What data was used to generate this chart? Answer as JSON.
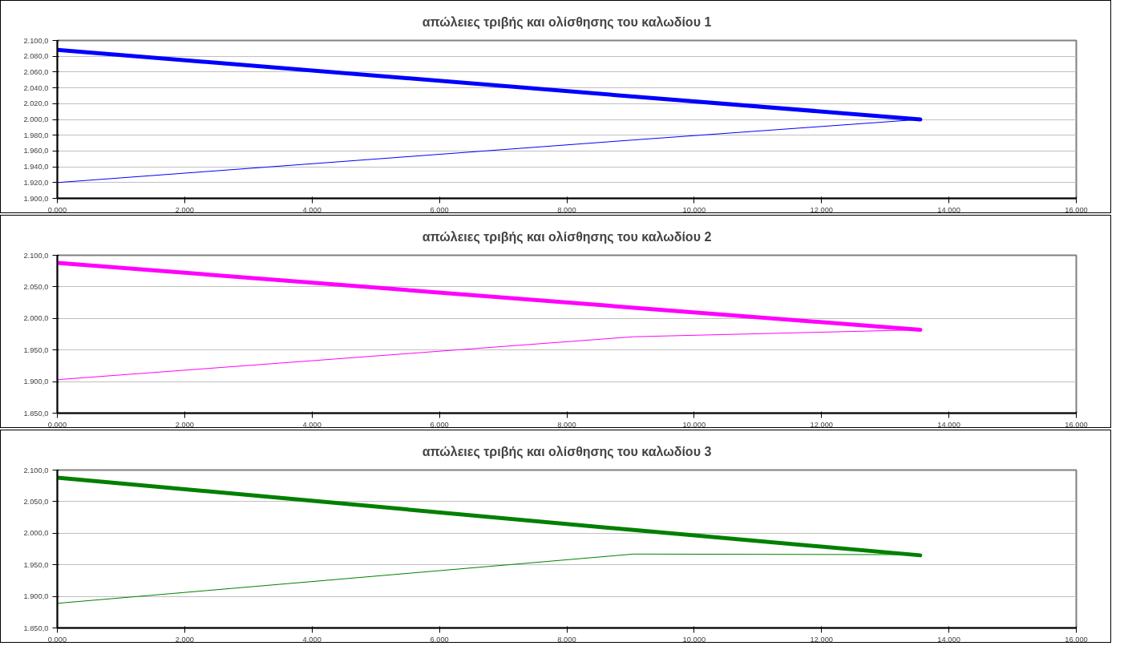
{
  "chart_data": [
    {
      "type": "line",
      "title": "απώλειες τριβής και ολίσθησης του καλωδίου 1",
      "x": [
        0,
        9.05,
        13.55
      ],
      "xlim": [
        0,
        16
      ],
      "xticks": [
        {
          "value": 0,
          "label": "0,000"
        },
        {
          "value": 2,
          "label": "2,000"
        },
        {
          "value": 4,
          "label": "4,000"
        },
        {
          "value": 6,
          "label": "6,000"
        },
        {
          "value": 8,
          "label": "8,000"
        },
        {
          "value": 10,
          "label": "10,000"
        },
        {
          "value": 12,
          "label": "12,000"
        },
        {
          "value": 14,
          "label": "14,000"
        },
        {
          "value": 16,
          "label": "16,000"
        }
      ],
      "ylim": [
        1900,
        2100
      ],
      "yticks": [
        {
          "value": 1900,
          "label": "1.900,0"
        },
        {
          "value": 1920,
          "label": "1.920,0"
        },
        {
          "value": 1940,
          "label": "1.940,0"
        },
        {
          "value": 1960,
          "label": "1.960,0"
        },
        {
          "value": 1980,
          "label": "1.980,0"
        },
        {
          "value": 2000,
          "label": "2.000,0"
        },
        {
          "value": 2020,
          "label": "2.020,0"
        },
        {
          "value": 2040,
          "label": "2.040,0"
        },
        {
          "value": 2060,
          "label": "2.060,0"
        },
        {
          "value": 2080,
          "label": "2.080,0"
        },
        {
          "value": 2100,
          "label": "2.100,0"
        }
      ],
      "grid": "y",
      "series": [
        {
          "color": "#0000ff",
          "values": [
            2088,
            2029,
            2000
          ]
        },
        {
          "color": "#0000ff",
          "values": [
            1920,
            1974,
            2000
          ]
        }
      ]
    },
    {
      "type": "line",
      "title": "απώλειες τριβής και ολίσθησης του καλωδίου 2",
      "x": [
        0,
        9.05,
        13.55
      ],
      "xlim": [
        0,
        16
      ],
      "xticks": [
        {
          "value": 0,
          "label": "0,000"
        },
        {
          "value": 2,
          "label": "2,000"
        },
        {
          "value": 4,
          "label": "4,000"
        },
        {
          "value": 6,
          "label": "6,000"
        },
        {
          "value": 8,
          "label": "8,000"
        },
        {
          "value": 10,
          "label": "10,000"
        },
        {
          "value": 12,
          "label": "12,000"
        },
        {
          "value": 14,
          "label": "14,000"
        },
        {
          "value": 16,
          "label": "16,000"
        }
      ],
      "ylim": [
        1850,
        2100
      ],
      "yticks": [
        {
          "value": 1850,
          "label": "1.850,0"
        },
        {
          "value": 1900,
          "label": "1.900,0"
        },
        {
          "value": 1950,
          "label": "1.950,0"
        },
        {
          "value": 2000,
          "label": "2.000,0"
        },
        {
          "value": 2050,
          "label": "2.050,0"
        },
        {
          "value": 2100,
          "label": "2.100,0"
        }
      ],
      "grid": "y",
      "series": [
        {
          "color": "#ff00ff",
          "values": [
            2088,
            2017,
            1982
          ]
        },
        {
          "color": "#ff00ff",
          "values": [
            1903,
            1971,
            1982
          ]
        }
      ]
    },
    {
      "type": "line",
      "title": "απώλειες τριβής και ολίσθησης του καλωδίου 3",
      "x": [
        0,
        9.05,
        13.55
      ],
      "xlim": [
        0,
        16
      ],
      "xticks": [
        {
          "value": 0,
          "label": "0,000"
        },
        {
          "value": 2,
          "label": "2,000"
        },
        {
          "value": 4,
          "label": "4,000"
        },
        {
          "value": 6,
          "label": "6,000"
        },
        {
          "value": 8,
          "label": "8,000"
        },
        {
          "value": 10,
          "label": "10,000"
        },
        {
          "value": 12,
          "label": "12,000"
        },
        {
          "value": 14,
          "label": "14,000"
        },
        {
          "value": 16,
          "label": "16,000"
        }
      ],
      "ylim": [
        1850,
        2100
      ],
      "yticks": [
        {
          "value": 1850,
          "label": "1.850,0"
        },
        {
          "value": 1900,
          "label": "1.900,0"
        },
        {
          "value": 1950,
          "label": "1.950,0"
        },
        {
          "value": 2000,
          "label": "2.000,0"
        },
        {
          "value": 2050,
          "label": "2.050,0"
        },
        {
          "value": 2100,
          "label": "2.100,0"
        }
      ],
      "grid": "y",
      "series": [
        {
          "color": "#008000",
          "values": [
            2088,
            2005,
            1965
          ]
        },
        {
          "color": "#008000",
          "values": [
            1889,
            1967,
            1966
          ]
        }
      ]
    }
  ]
}
